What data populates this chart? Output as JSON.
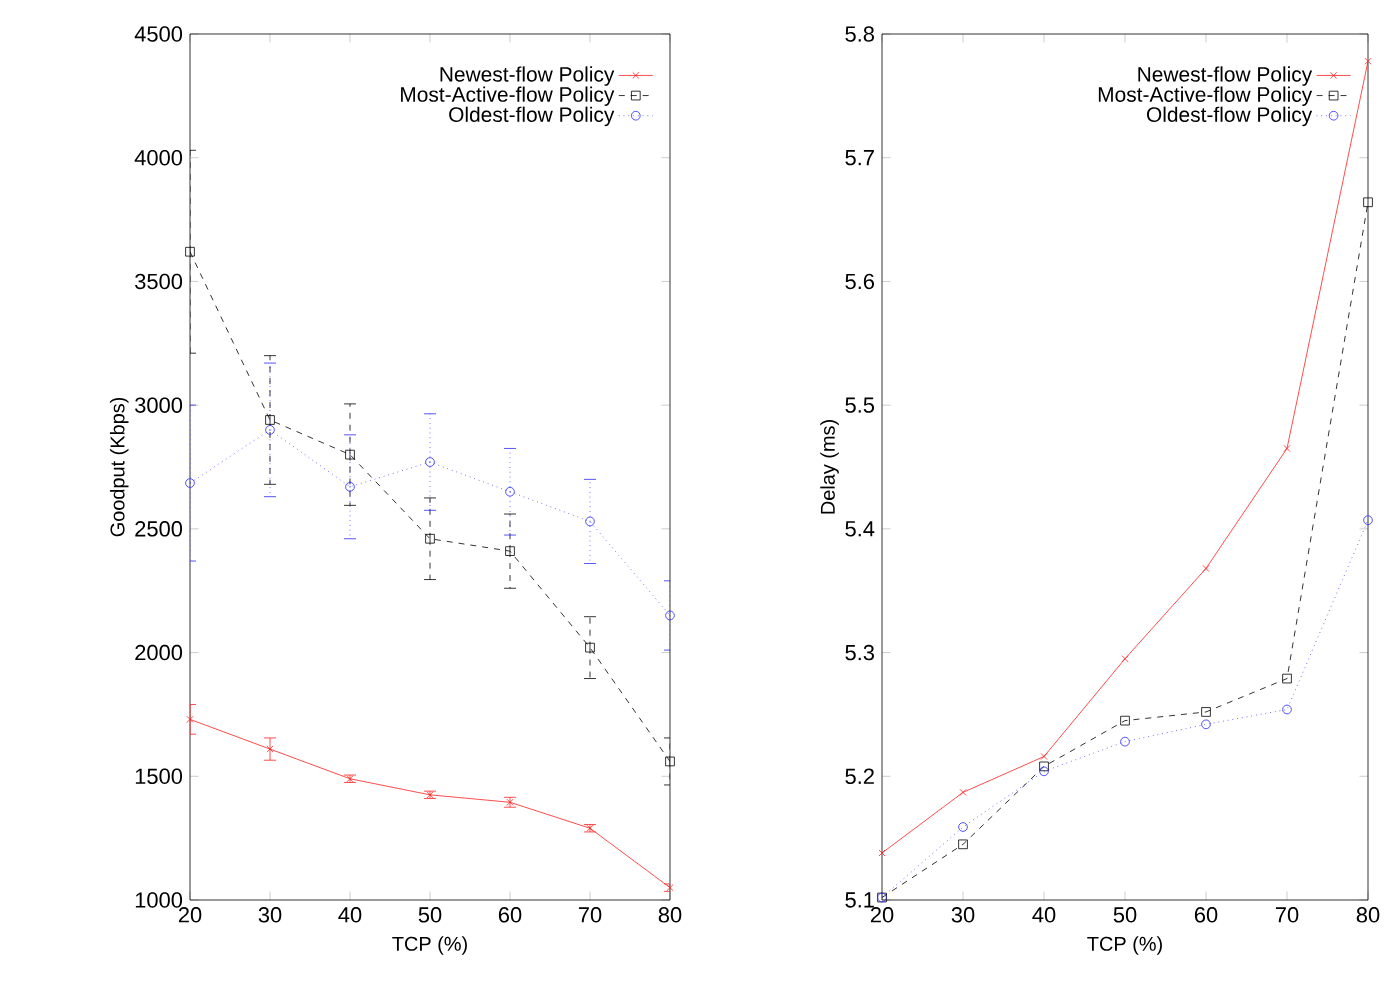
{
  "chart_data": [
    {
      "type": "line",
      "xlabel": "TCP (%)",
      "ylabel": "Goodput (Kbps)",
      "x": [
        20,
        30,
        40,
        50,
        60,
        70,
        80
      ],
      "xlim": [
        20,
        80
      ],
      "xticks": [
        20,
        30,
        40,
        50,
        60,
        70,
        80
      ],
      "ylim": [
        1000,
        4500
      ],
      "yticks": [
        1000,
        1500,
        2000,
        2500,
        3000,
        3500,
        4000,
        4500
      ],
      "legend": "top right",
      "series": [
        {
          "name": "Newest-flow Policy",
          "color": "#ff2020",
          "marker": "cross",
          "line_style": "solid",
          "values": [
            1730,
            1610,
            1490,
            1425,
            1395,
            1290,
            1050
          ],
          "errors": [
            60,
            45,
            15,
            15,
            20,
            15,
            15
          ]
        },
        {
          "name": "Most-Active-flow Policy",
          "color": "#000000",
          "marker": "square",
          "line_style": "dashed",
          "values": [
            3620,
            2940,
            2800,
            2460,
            2410,
            2020,
            1560
          ],
          "errors": [
            410,
            260,
            205,
            165,
            150,
            125,
            95
          ]
        },
        {
          "name": "Oldest-flow Policy",
          "color": "#2a2aff",
          "marker": "circle",
          "line_style": "dotted",
          "values": [
            2685,
            2900,
            2670,
            2770,
            2650,
            2530,
            2150
          ],
          "errors": [
            315,
            270,
            210,
            195,
            175,
            170,
            140
          ]
        }
      ]
    },
    {
      "type": "line",
      "xlabel": "TCP (%)",
      "ylabel": "Delay (ms)",
      "x": [
        20,
        30,
        40,
        50,
        60,
        70,
        80
      ],
      "xlim": [
        20,
        80
      ],
      "xticks": [
        20,
        30,
        40,
        50,
        60,
        70,
        80
      ],
      "ylim": [
        5.1,
        5.8
      ],
      "yticks": [
        5.1,
        5.2,
        5.3,
        5.4,
        5.5,
        5.6,
        5.7,
        5.8
      ],
      "legend": "top right",
      "series": [
        {
          "name": "Newest-flow Policy",
          "color": "#ff2020",
          "marker": "cross",
          "line_style": "solid",
          "values": [
            5.138,
            5.187,
            5.216,
            5.295,
            5.368,
            5.465,
            5.778
          ]
        },
        {
          "name": "Most-Active-flow Policy",
          "color": "#000000",
          "marker": "square",
          "line_style": "dashed",
          "values": [
            5.102,
            5.145,
            5.208,
            5.245,
            5.252,
            5.279,
            5.664
          ]
        },
        {
          "name": "Oldest-flow Policy",
          "color": "#2a2aff",
          "marker": "circle",
          "line_style": "dotted",
          "values": [
            5.102,
            5.159,
            5.204,
            5.228,
            5.242,
            5.254,
            5.407
          ]
        }
      ]
    }
  ]
}
